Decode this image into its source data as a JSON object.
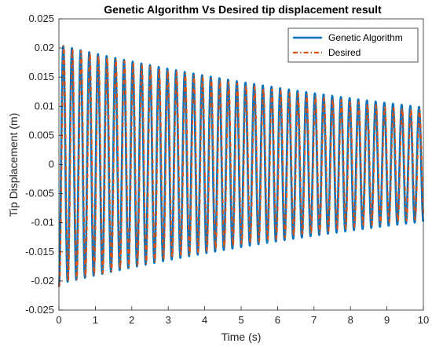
{
  "chart_data": {
    "type": "line",
    "title": "Genetic Algorithm Vs Desired tip displacement result",
    "xlabel": "Time (s)",
    "ylabel": "Tip Displacement (m)",
    "xlim": [
      0,
      10
    ],
    "ylim": [
      -0.025,
      0.025
    ],
    "x_ticks": [
      "0",
      "1",
      "2",
      "3",
      "4",
      "5",
      "6",
      "7",
      "8",
      "9",
      "10"
    ],
    "y_ticks": [
      "-0.025",
      "-0.02",
      "-0.015",
      "-0.01",
      "-0.005",
      "0",
      "0.005",
      "0.01",
      "0.015",
      "0.02",
      "0.025"
    ],
    "grid": false,
    "legend_position": "top-right",
    "signal": {
      "initial_value": -0.021,
      "oscillation_frequency_hz": 4.2,
      "peak_amplitude_start": 0.0205,
      "peak_amplitude_end": 0.0095
    },
    "series": [
      {
        "name": "Genetic Algorithm",
        "color": "#0072BD",
        "line_style": "solid",
        "first_peak": {
          "x": 0.3,
          "y": 0.0202
        },
        "last_peak": {
          "x": 9.8,
          "y": 0.0098
        },
        "last_trough": {
          "x": 9.9,
          "y": -0.0095
        }
      },
      {
        "name": "Desired",
        "color": "#D95319",
        "line_style": "dash-dot",
        "first_peak": {
          "x": 0.31,
          "y": 0.0205
        },
        "last_peak": {
          "x": 9.8,
          "y": 0.0093
        },
        "last_trough": {
          "x": 9.9,
          "y": -0.0088
        }
      }
    ]
  }
}
